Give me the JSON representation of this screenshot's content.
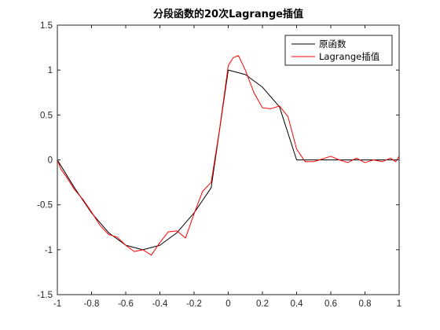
{
  "chart_data": {
    "type": "line",
    "title": "分段函数的20次Lagrange插值",
    "xlabel": "",
    "ylabel": "",
    "xlim": [
      -1,
      1
    ],
    "ylim": [
      -1.5,
      1.5
    ],
    "x_ticks": [
      -1,
      -0.8,
      -0.6,
      -0.4,
      -0.2,
      0,
      0.2,
      0.4,
      0.6,
      0.8,
      1
    ],
    "x_tick_labels": [
      "-1",
      "-0.8",
      "-0.6",
      "-0.4",
      "-0.2",
      "0",
      "0.2",
      "0.4",
      "0.6",
      "0.8",
      "1"
    ],
    "y_ticks": [
      -1.5,
      -1,
      -0.5,
      0,
      0.5,
      1,
      1.5
    ],
    "y_tick_labels": [
      "-1.5",
      "-1",
      "-0.5",
      "0",
      "0.5",
      "1",
      "1.5"
    ],
    "grid": false,
    "legend_position": "top-right",
    "series": [
      {
        "name": "原函数",
        "color": "#000000",
        "x": [
          -1,
          -0.9,
          -0.8,
          -0.7,
          -0.6,
          -0.5,
          -0.4,
          -0.3,
          -0.2,
          -0.1,
          0,
          0.1,
          0.2,
          0.3,
          0.4,
          0.5,
          0.6,
          0.7,
          0.8,
          0.9,
          1
        ],
        "y": [
          0,
          -0.31,
          -0.59,
          -0.81,
          -0.95,
          -1.0,
          -0.95,
          -0.81,
          -0.59,
          -0.31,
          1.0,
          0.95,
          0.81,
          0.59,
          0,
          0,
          0,
          0,
          0,
          0,
          0
        ]
      },
      {
        "name": "Lagrange插值",
        "color": "#ff0000",
        "x": [
          -1,
          -0.98,
          -0.95,
          -0.9,
          -0.85,
          -0.8,
          -0.75,
          -0.7,
          -0.65,
          -0.6,
          -0.55,
          -0.5,
          -0.45,
          -0.4,
          -0.35,
          -0.3,
          -0.25,
          -0.2,
          -0.15,
          -0.1,
          -0.05,
          0,
          0.03,
          0.06,
          0.1,
          0.15,
          0.2,
          0.25,
          0.3,
          0.35,
          0.4,
          0.45,
          0.5,
          0.55,
          0.6,
          0.65,
          0.7,
          0.75,
          0.8,
          0.85,
          0.9,
          0.95,
          0.98,
          1
        ],
        "y": [
          0,
          -0.1,
          -0.18,
          -0.33,
          -0.44,
          -0.58,
          -0.73,
          -0.83,
          -0.86,
          -0.95,
          -1.02,
          -1.0,
          -1.06,
          -0.92,
          -0.8,
          -0.79,
          -0.87,
          -0.6,
          -0.35,
          -0.25,
          0.35,
          1.05,
          1.14,
          1.16,
          1.0,
          0.75,
          0.58,
          0.57,
          0.6,
          0.48,
          0.12,
          -0.02,
          -0.02,
          0.01,
          0.04,
          0,
          -0.03,
          0.02,
          -0.03,
          0,
          -0.02,
          0.02,
          -0.02,
          0.04
        ]
      }
    ]
  }
}
